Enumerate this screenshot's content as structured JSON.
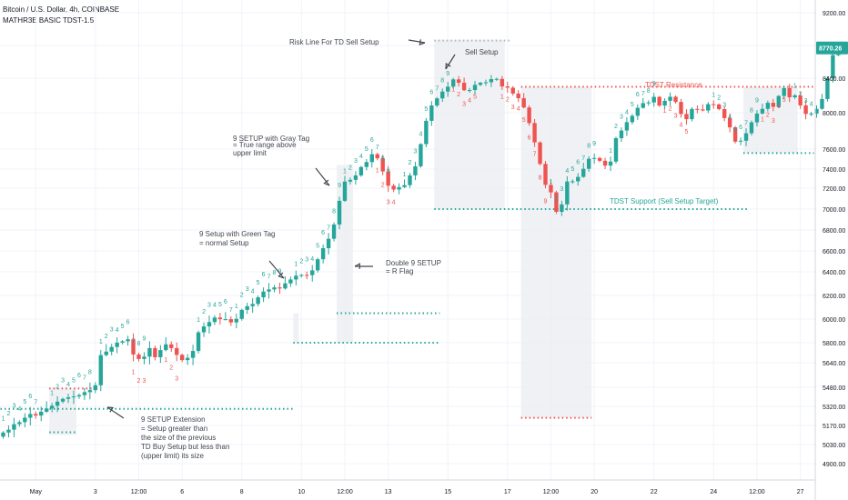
{
  "header": {
    "symbol_line": "Bitcoin / U.S. Dollar, 4h, COINBASE",
    "indicator_line": "MATHR3E BASIC TDST-1.5"
  },
  "colors": {
    "bull": "#26a69a",
    "bear": "#ef5350",
    "grid": "#f0f3fa",
    "annotation": "#434651",
    "shade": "#e9ebef",
    "price_tag": "#26a69a"
  },
  "chart_data": {
    "type": "candlestick",
    "title": "Bitcoin / U.S. Dollar, 4h, COINBASE",
    "ylim": [
      4750,
      9350
    ],
    "y_ticks": [
      4900,
      5030,
      5170,
      5320,
      5480,
      5640,
      5800,
      6000,
      6200,
      6400,
      6600,
      6800,
      7000,
      7200,
      7400,
      7600,
      8000,
      8400,
      8800,
      9200
    ],
    "y_tick_labels": [
      "4900.00",
      "5030.00",
      "5170.00",
      "5320.00",
      "5480.00",
      "5640.00",
      "5800.00",
      "6000.00",
      "6200.00",
      "6400.00",
      "6600.00",
      "6800.00",
      "7000.00",
      "7200.00",
      "7400.00",
      "7600.00",
      "8000.00",
      "8400.00",
      "8800.00",
      "9200.00"
    ],
    "x_ticks": [
      {
        "label": "May",
        "bar": 6
      },
      {
        "label": "3",
        "bar": 17
      },
      {
        "label": "12:00",
        "bar": 25
      },
      {
        "label": "6",
        "bar": 33
      },
      {
        "label": "8",
        "bar": 44
      },
      {
        "label": "10",
        "bar": 55
      },
      {
        "label": "12:00",
        "bar": 63
      },
      {
        "label": "13",
        "bar": 71
      },
      {
        "label": "15",
        "bar": 82
      },
      {
        "label": "17",
        "bar": 93
      },
      {
        "label": "12:00",
        "bar": 101
      },
      {
        "label": "20",
        "bar": 109
      },
      {
        "label": "22",
        "bar": 120
      },
      {
        "label": "24",
        "bar": 131
      },
      {
        "label": "12:00",
        "bar": 139
      },
      {
        "label": "27",
        "bar": 147
      }
    ],
    "last_price": "8770.26",
    "close": [
      5118,
      5139,
      5180,
      5196,
      5231,
      5260,
      5248,
      5278,
      5303,
      5325,
      5360,
      5383,
      5396,
      5403,
      5414,
      5439,
      5456,
      5493,
      5701,
      5729,
      5766,
      5801,
      5812,
      5829,
      5706,
      5670,
      5689,
      5757,
      5684,
      5741,
      5787,
      5757,
      5703,
      5661,
      5679,
      5734,
      5888,
      5938,
      5975,
      6013,
      5999,
      5999,
      5972,
      6002,
      6078,
      6109,
      6128,
      6184,
      6233,
      6251,
      6268,
      6259,
      6302,
      6335,
      6367,
      6373,
      6372,
      6414,
      6520,
      6626,
      6716,
      6853,
      7079,
      7269,
      7287,
      7334,
      7421,
      7470,
      7549,
      7508,
      7375,
      7226,
      7187,
      7211,
      7232,
      7334,
      7428,
      7655,
      7911,
      8084,
      8166,
      8245,
      8302,
      8386,
      8347,
      8261,
      8263,
      8323,
      8347,
      8353,
      8389,
      8392,
      8305,
      8290,
      8222,
      8168,
      8061,
      7886,
      7674,
      7452,
      7235,
      7160,
      6974,
      7045,
      7270,
      7272,
      7318,
      7403,
      7503,
      7511,
      7483,
      7435,
      7475,
      7720,
      7804,
      7896,
      7966,
      8057,
      8111,
      8119,
      8184,
      8083,
      8138,
      8185,
      8125,
      7986,
      7929,
      8044,
      8038,
      8026,
      8099,
      8096,
      8042,
      7941,
      7839,
      7682,
      7692,
      7774,
      7894,
      7991,
      8045,
      8115,
      8068,
      8194,
      8285,
      8179,
      8201,
      8085,
      7987,
      7990,
      8045,
      8159,
      8399,
      8682,
      8770
    ],
    "annotations": [
      "Risk Line For TD Sell Setup",
      "Sell Setup",
      "9 SETUP with Gray Tag",
      "= True range above",
      "upper limit",
      "9 Setup with Green Tag",
      "= normal Setup",
      "Double 9 SETUP",
      "= R Flag",
      "9 SETUP Extension",
      "= Setup greater than",
      "the size of the previous",
      "TD Buy Setup but less than",
      "(upper limit) its size",
      "TDST Resistance",
      "TDST Support (Sell Setup Target)"
    ]
  }
}
